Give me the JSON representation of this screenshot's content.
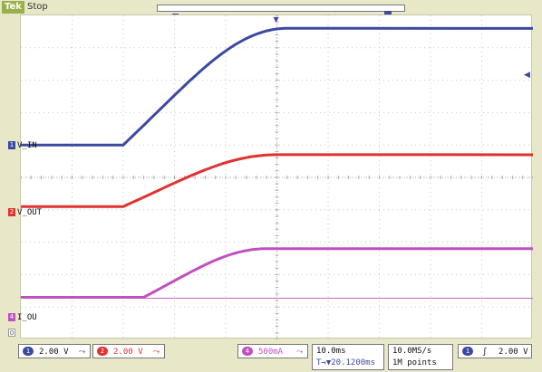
{
  "header": {
    "brand": "Tek",
    "run_state": "Stop"
  },
  "markers": {
    "trigger_position": "T",
    "record_window": "a"
  },
  "channels": [
    {
      "id": "1",
      "label": "V_IN",
      "color": "#3b4aa0",
      "scale": "2.00 V",
      "coupling": "⤳"
    },
    {
      "id": "2",
      "label": "V_OUT",
      "color": "#e0322e",
      "scale": "2.00 V",
      "coupling": "⤳"
    },
    {
      "id": "4",
      "label": "I_OU",
      "color": "#c050c0",
      "scale": "500mA",
      "coupling": "⤳"
    }
  ],
  "ground_marker": "0",
  "timebase": {
    "scale": "10.0ms",
    "delay": "T→▼20.1200ms"
  },
  "acquisition": {
    "sample_rate": "10.0MS/s",
    "record_length": "1M points"
  },
  "trigger": {
    "source": "1",
    "slope": "ʃ",
    "level": "2.00 V"
  },
  "waveforms": [
    {
      "channel": "1",
      "start_div": 2.0,
      "end_div": 5.2,
      "low_div": 4.0,
      "high_div": 0.4
    },
    {
      "channel": "2",
      "start_div": 2.0,
      "end_div": 5.0,
      "low_div": 5.9,
      "high_div": 4.3
    },
    {
      "channel": "4",
      "start_div": 2.4,
      "end_div": 4.8,
      "low_div": 8.7,
      "high_div": 7.2
    }
  ]
}
